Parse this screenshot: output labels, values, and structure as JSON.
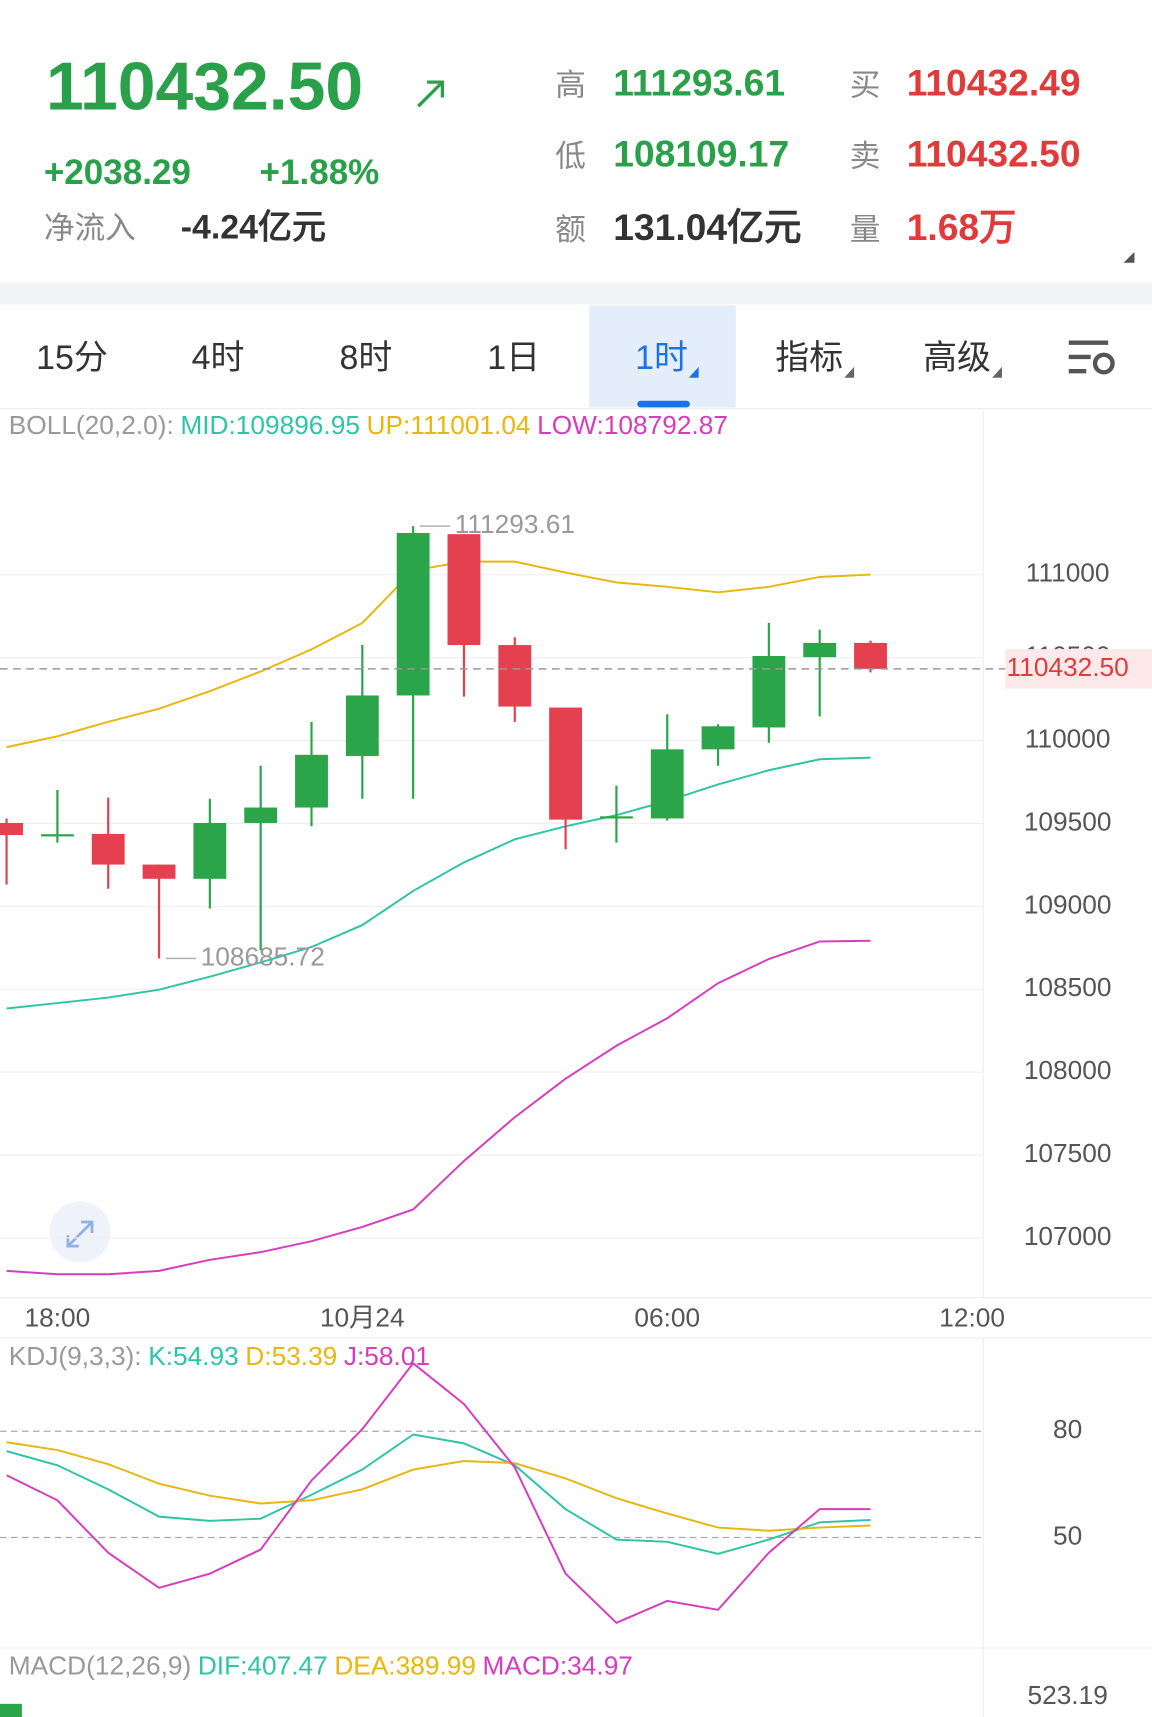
{
  "header": {
    "price": "110432.50",
    "change": "+2038.29",
    "change_pct": "+1.88%",
    "inflow_label": "净流入",
    "inflow": "-4.24亿元",
    "stats": [
      {
        "label": "高",
        "value": "111293.61"
      },
      {
        "label": "低",
        "value": "108109.17"
      },
      {
        "label": "额",
        "value": "131.04亿元"
      },
      {
        "label": "买",
        "value": "110432.49"
      },
      {
        "label": "卖",
        "value": "110432.50"
      },
      {
        "label": "量",
        "value": "1.68万"
      }
    ]
  },
  "tabs": [
    "15分",
    "4时",
    "8时",
    "1日",
    "1时",
    "指标",
    "高级"
  ],
  "selected_tab": 4,
  "chart_data": [
    {
      "type": "candlestick",
      "indicator": "BOLL(20,2.0):",
      "open": [
        109503,
        109430,
        109437,
        109252,
        109166,
        109503,
        109596,
        109907,
        110272,
        111245,
        110576,
        110199,
        109536,
        109530,
        109947,
        110079,
        110503,
        110589
      ],
      "close": [
        109430,
        109435,
        109252,
        109166,
        109503,
        109596,
        109914,
        110272,
        111252,
        110576,
        110205,
        109523,
        109543,
        109947,
        110086,
        110510,
        110589,
        110432.5
      ],
      "high": [
        109530,
        109702,
        109656,
        109252,
        109649,
        109848,
        110113,
        110576,
        111293.61,
        111245,
        110623,
        110199,
        109728,
        110159,
        110099,
        110709,
        110669,
        110603
      ],
      "low": [
        109132,
        109384,
        109106,
        108685.72,
        108987,
        108735,
        109483,
        109649,
        109649,
        110265,
        110113,
        109344,
        109384,
        109517,
        109848,
        109987,
        110146,
        110411
      ],
      "up_color": "#2aa54a",
      "down_color": "#e5404f",
      "series": [
        {
          "name": "MID:109896.95",
          "color": "#2fc4a6",
          "values": [
            108384,
            108417,
            108450,
            108497,
            108576,
            108662,
            108755,
            108887,
            109093,
            109265,
            109404,
            109483,
            109550,
            109636,
            109735,
            109821,
            109887,
            109896.95
          ]
        },
        {
          "name": "UP:111001.04",
          "color": "#e8b60f",
          "values": [
            109960,
            110026,
            110113,
            110192,
            110298,
            110417,
            110550,
            110709,
            111026,
            111079,
            111079,
            111013,
            110954,
            110927,
            110894,
            110927,
            110987,
            111001.04
          ]
        },
        {
          "name": "LOW:108792.87",
          "color": "#d63dbd",
          "values": [
            106801,
            106781,
            106781,
            106801,
            106868,
            106914,
            106980,
            107066,
            107172,
            107464,
            107728,
            107960,
            108159,
            108325,
            108536,
            108682,
            108788,
            108792.87
          ]
        }
      ],
      "annotations": [
        "high.8",
        "low.3"
      ],
      "price_line": {
        "value": 110432.5,
        "label": "110432.50"
      },
      "xlim": [
        -0.129,
        19.22
      ],
      "xticks": [
        {
          "value": 1,
          "label": "18:00"
        },
        {
          "value": 7,
          "label": "10月24"
        },
        {
          "value": 13,
          "label": "06:00"
        },
        {
          "value": 19,
          "label": "12:00"
        }
      ],
      "ylim": [
        106640,
        111990
      ],
      "yticks": [
        107000,
        107500,
        108000,
        108500,
        109000,
        109500,
        110000,
        110500,
        111000
      ],
      "grid": true
    },
    {
      "type": "line",
      "indicator": "KDJ(9,3,3):",
      "series": [
        {
          "name": "K:54.93",
          "color": "#2fc4a6",
          "values": [
            74.4,
            70.4,
            63.6,
            55.9,
            54.7,
            55.3,
            62.1,
            69.2,
            79.1,
            76.6,
            70.4,
            58.0,
            49.4,
            48.8,
            45.4,
            49.4,
            54.3,
            54.93
          ]
        },
        {
          "name": "D:53.39",
          "color": "#e8b60f",
          "values": [
            76.9,
            74.7,
            70.7,
            65.2,
            61.8,
            59.6,
            60.5,
            63.6,
            69.2,
            71.6,
            71.0,
            66.7,
            61.1,
            56.8,
            52.8,
            51.9,
            52.8,
            53.39
          ]
        },
        {
          "name": "J:58.01",
          "color": "#d63dbd",
          "values": [
            67.6,
            60.5,
            45.7,
            35.8,
            39.8,
            46.6,
            66.1,
            80.6,
            99.2,
            87.7,
            69.8,
            39.8,
            25.9,
            32.1,
            29.6,
            45.7,
            58.0,
            58.01
          ]
        }
      ],
      "xlim": [
        -0.129,
        19.22
      ],
      "ylim": [
        18.8,
        106.3
      ],
      "yticks": [
        50,
        80
      ],
      "grid": true
    }
  ],
  "macd_panel": {
    "indicator": "MACD(12,26,9)",
    "legend": [
      {
        "text": "DIF:407.47",
        "color": "#2fc4a6"
      },
      {
        "text": "DEA:389.99",
        "color": "#e8b60f"
      },
      {
        "text": "MACD:34.97",
        "color": "#d63dbd"
      }
    ],
    "tick": "523.19"
  }
}
